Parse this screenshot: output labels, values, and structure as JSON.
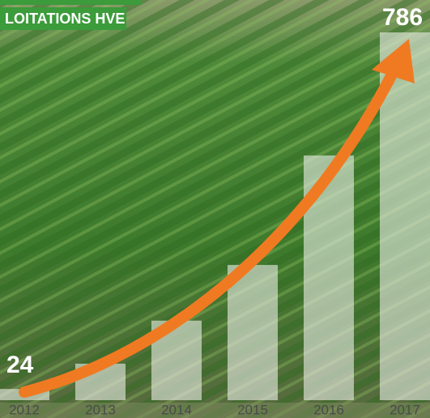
{
  "chart_data": {
    "type": "bar",
    "title": "LOITATIONS HVE",
    "categories": [
      "2012",
      "2013",
      "2014",
      "2015",
      "2016",
      "2017"
    ],
    "values": [
      24,
      78,
      170,
      289,
      523,
      786
    ],
    "color": "#e8ece4"
  }
}
